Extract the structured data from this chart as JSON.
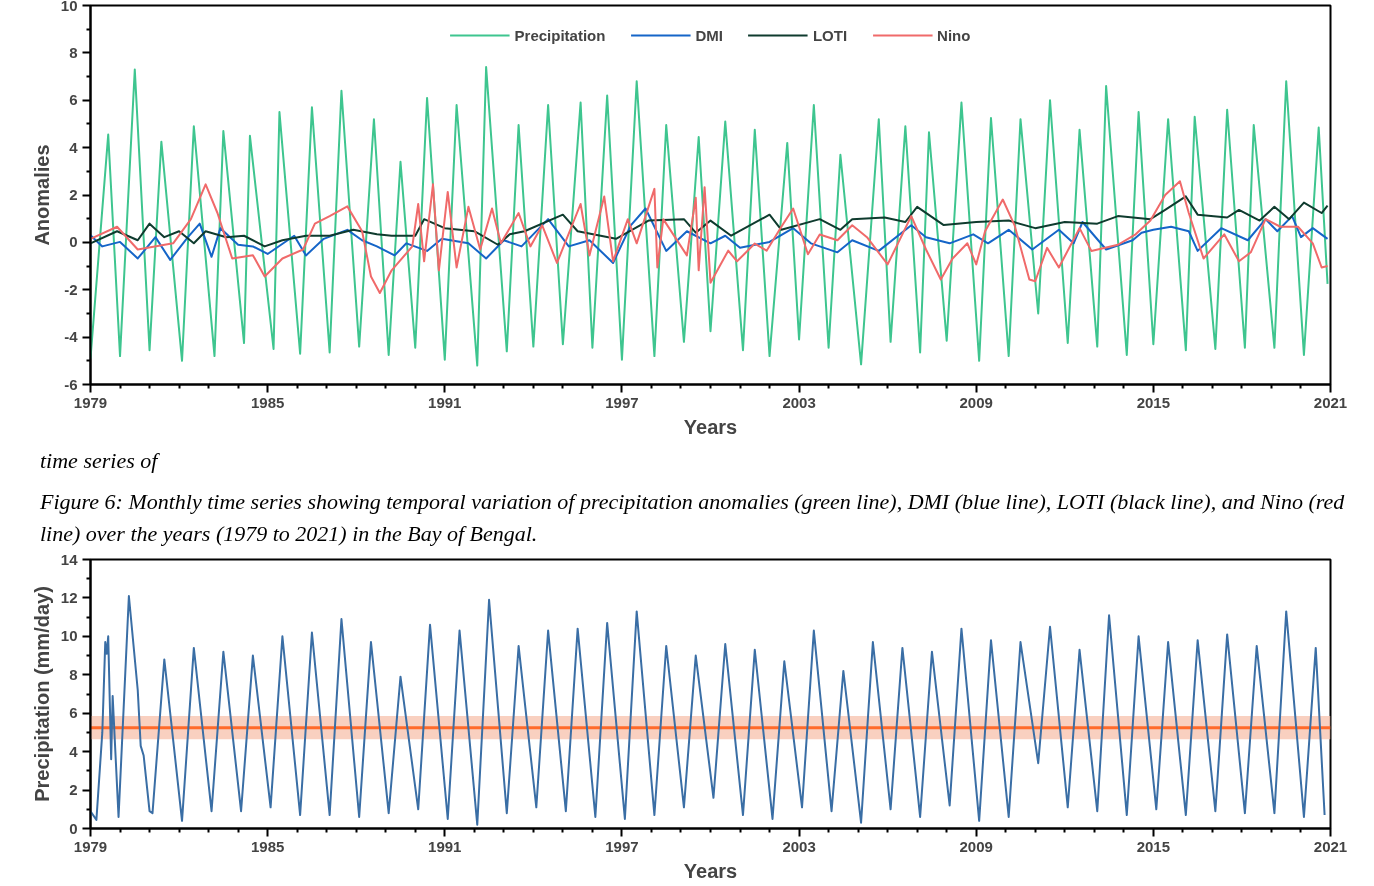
{
  "chart_data": [
    {
      "type": "line",
      "xlabel": "Years",
      "ylabel": "Anomalies",
      "xlim": [
        1979,
        2021
      ],
      "xticks": [
        1979,
        1985,
        1991,
        1997,
        2003,
        2009,
        2015,
        2021
      ],
      "ylim": [
        -6,
        10
      ],
      "yticks": [
        -6,
        -4,
        -2,
        0,
        2,
        4,
        6,
        8,
        10
      ],
      "grid": false,
      "legend": "top",
      "marker": "none",
      "line_style": "solid",
      "annotations": [
        "time series of",
        "Figure 6: Monthly time series showing temporal variation of precipitation anomalies (green line), DMI (blue line), LOTI (black line), and Nino (red line) over the years (1979 to 2021) in the Bay of Bengal."
      ],
      "series": [
        {
          "name": "Precipitation",
          "color": "#3ec58f",
          "x": [
            1979.0,
            1979.6,
            1980.0,
            1980.5,
            1981.0,
            1981.4,
            1982.1,
            1982.5,
            1983.2,
            1983.5,
            1984.2,
            1984.4,
            1985.2,
            1985.4,
            1986.1,
            1986.5,
            1987.1,
            1987.5,
            1988.1,
            1988.6,
            1989.1,
            1989.5,
            1990.0,
            1990.4,
            1991.0,
            1991.4,
            1992.1,
            1992.4,
            1993.1,
            1993.5,
            1994.0,
            1994.5,
            1995.0,
            1995.6,
            1996.0,
            1996.5,
            1997.0,
            1997.5,
            1998.1,
            1998.5,
            1999.1,
            1999.6,
            2000.0,
            2000.5,
            2001.1,
            2001.5,
            2002.0,
            2002.6,
            2003.0,
            2003.5,
            2004.0,
            2004.4,
            2005.1,
            2005.7,
            2006.1,
            2006.6,
            2007.1,
            2007.4,
            2008.0,
            2008.5,
            2009.1,
            2009.5,
            2010.1,
            2010.5,
            2011.1,
            2011.5,
            2012.1,
            2012.5,
            2013.1,
            2013.4,
            2014.1,
            2014.5,
            2015.0,
            2015.5,
            2016.1,
            2016.4,
            2017.1,
            2017.5,
            2018.1,
            2018.4,
            2019.1,
            2019.5,
            2020.1,
            2020.6,
            2020.9
          ],
          "values": [
            -4.9,
            4.55,
            -4.8,
            7.3,
            -4.55,
            4.25,
            -5.0,
            4.9,
            -4.8,
            4.7,
            -4.25,
            4.5,
            -4.5,
            5.5,
            -4.7,
            5.7,
            -4.65,
            6.4,
            -4.4,
            5.2,
            -4.75,
            3.4,
            -4.45,
            6.1,
            -4.95,
            5.8,
            -5.2,
            7.4,
            -4.6,
            4.95,
            -4.4,
            5.8,
            -4.3,
            5.9,
            -4.45,
            6.2,
            -4.95,
            6.8,
            -4.8,
            4.95,
            -4.2,
            4.45,
            -3.75,
            5.1,
            -4.55,
            4.75,
            -4.8,
            4.2,
            -4.1,
            5.8,
            -4.45,
            3.7,
            -5.15,
            5.2,
            -4.2,
            4.9,
            -4.65,
            4.65,
            -4.15,
            5.9,
            -5.0,
            5.25,
            -4.8,
            5.2,
            -3.0,
            6.0,
            -4.25,
            4.75,
            -4.4,
            6.6,
            -4.75,
            5.5,
            -4.3,
            5.2,
            -4.55,
            5.3,
            -4.5,
            5.6,
            -4.45,
            4.95,
            -4.45,
            6.8,
            -4.75,
            4.85,
            -1.75
          ]
        },
        {
          "name": "DMI",
          "color": "#1565c8",
          "x": [
            1979.0,
            1979.4,
            1980.0,
            1980.6,
            1981.2,
            1981.7,
            1982.3,
            1982.7,
            1983.1,
            1983.4,
            1984.0,
            1984.5,
            1985.0,
            1985.9,
            1986.3,
            1986.9,
            1987.7,
            1988.2,
            1988.7,
            1989.3,
            1989.7,
            1990.4,
            1990.9,
            1991.8,
            1992.4,
            1993.0,
            1993.6,
            1994.5,
            1995.2,
            1995.9,
            1996.7,
            1997.3,
            1997.8,
            1998.5,
            1999.2,
            2000.0,
            2000.5,
            2001.0,
            2002.0,
            2002.8,
            2003.4,
            2004.3,
            2004.8,
            2005.7,
            2006.8,
            2007.3,
            2008.1,
            2008.9,
            2009.4,
            2010.1,
            2010.9,
            2011.8,
            2012.3,
            2012.6,
            2013.4,
            2014.3,
            2014.6,
            2015.0,
            2015.6,
            2016.2,
            2016.5,
            2017.3,
            2018.2,
            2018.8,
            2019.2,
            2019.7,
            2020.0,
            2020.4,
            2020.9
          ],
          "values": [
            0.3,
            -0.17,
            0.02,
            -0.68,
            0.22,
            -0.74,
            0.22,
            0.79,
            -0.61,
            0.6,
            -0.1,
            -0.17,
            -0.49,
            0.28,
            -0.55,
            0.15,
            0.53,
            0.09,
            -0.17,
            -0.55,
            -0.04,
            -0.36,
            0.15,
            -0.04,
            -0.68,
            0.09,
            -0.17,
            0.98,
            -0.17,
            0.09,
            -0.87,
            0.72,
            1.43,
            -0.36,
            0.47,
            -0.04,
            0.28,
            -0.23,
            0.02,
            0.6,
            -0.04,
            -0.42,
            0.09,
            -0.36,
            0.72,
            0.22,
            -0.04,
            0.34,
            -0.04,
            0.53,
            -0.3,
            0.53,
            -0.04,
            0.86,
            -0.3,
            0.09,
            0.41,
            0.53,
            0.66,
            0.47,
            -0.36,
            0.6,
            0.09,
            0.98,
            0.47,
            1.11,
            0.22,
            0.6,
            0.15
          ]
        },
        {
          "name": "LOTI",
          "color": "#0f3b2e",
          "x": [
            1979.0,
            1979.9,
            1980.6,
            1981.0,
            1981.5,
            1982.0,
            1982.5,
            1982.9,
            1983.6,
            1984.2,
            1984.9,
            1985.5,
            1986.3,
            1987.1,
            1987.9,
            1988.7,
            1989.2,
            1990.0,
            1990.3,
            1991.0,
            1992.0,
            1992.8,
            1993.2,
            1993.7,
            1995.0,
            1995.5,
            1996.8,
            1997.9,
            1999.1,
            1999.5,
            2000.0,
            2000.7,
            2002.0,
            2002.4,
            2003.7,
            2004.4,
            2004.8,
            2005.9,
            2006.6,
            2007.0,
            2007.9,
            2009.0,
            2010.1,
            2011.0,
            2012.0,
            2013.1,
            2013.8,
            2014.9,
            2015.4,
            2016.1,
            2016.5,
            2017.5,
            2017.9,
            2018.6,
            2019.1,
            2019.6,
            2020.1,
            2020.7,
            2020.9
          ],
          "values": [
            -0.04,
            0.47,
            0.09,
            0.79,
            0.22,
            0.47,
            -0.04,
            0.47,
            0.22,
            0.28,
            -0.17,
            0.09,
            0.28,
            0.28,
            0.53,
            0.34,
            0.28,
            0.28,
            0.98,
            0.6,
            0.47,
            -0.1,
            0.34,
            0.47,
            1.17,
            0.47,
            0.15,
            0.92,
            0.98,
            0.41,
            0.92,
            0.28,
            1.17,
            0.53,
            0.98,
            0.53,
            0.98,
            1.05,
            0.86,
            1.5,
            0.73,
            0.86,
            0.92,
            0.6,
            0.86,
            0.79,
            1.11,
            0.98,
            1.37,
            1.94,
            1.17,
            1.05,
            1.37,
            0.92,
            1.5,
            0.98,
            1.68,
            1.24,
            1.55
          ]
        },
        {
          "name": "Nino",
          "color": "#f06a6a",
          "x": [
            1979.0,
            1979.9,
            1980.6,
            1981.8,
            1982.4,
            1982.9,
            1983.3,
            1983.8,
            1984.5,
            1984.9,
            1985.5,
            1986.2,
            1986.6,
            1987.1,
            1987.7,
            1988.2,
            1988.5,
            1988.8,
            1989.2,
            1989.9,
            1990.1,
            1990.3,
            1990.6,
            1990.8,
            1991.1,
            1991.4,
            1991.8,
            1992.2,
            1992.6,
            1992.9,
            1993.5,
            1993.9,
            1994.3,
            1994.8,
            1995.6,
            1995.9,
            1996.4,
            1996.7,
            1997.2,
            1997.5,
            1998.1,
            1998.2,
            1998.4,
            1999.2,
            1999.5,
            1999.6,
            1999.8,
            2000.0,
            2000.6,
            2000.9,
            2001.5,
            2001.9,
            2002.4,
            2002.8,
            2003.3,
            2003.7,
            2004.3,
            2004.8,
            2005.3,
            2006.0,
            2006.8,
            2007.3,
            2007.8,
            2008.2,
            2008.7,
            2009.0,
            2009.3,
            2009.9,
            2010.3,
            2010.8,
            2011.0,
            2011.4,
            2011.8,
            2012.5,
            2012.9,
            2013.8,
            2014.4,
            2014.9,
            2015.4,
            2015.9,
            2016.2,
            2016.7,
            2017.4,
            2017.9,
            2018.3,
            2018.8,
            2019.3,
            2019.9,
            2020.4,
            2020.7,
            2020.9
          ],
          "values": [
            0.15,
            0.66,
            -0.3,
            -0.04,
            0.98,
            2.45,
            1.24,
            -0.68,
            -0.54,
            -1.44,
            -0.68,
            -0.3,
            0.79,
            1.11,
            1.52,
            0.47,
            -1.44,
            -2.14,
            -1.18,
            -0.17,
            1.62,
            -0.8,
            2.45,
            -1.18,
            2.13,
            -1.06,
            1.5,
            -0.3,
            1.43,
            -0.04,
            1.24,
            -0.17,
            0.72,
            -0.87,
            1.62,
            -0.55,
            1.94,
            -0.8,
            0.98,
            -0.04,
            2.26,
            -1.06,
            0.98,
            -0.55,
            1.88,
            -1.18,
            2.33,
            -1.7,
            -0.35,
            -0.8,
            -0.05,
            -0.35,
            0.66,
            1.43,
            -0.5,
            0.33,
            0.09,
            0.72,
            0.22,
            -0.93,
            1.11,
            -0.3,
            -1.57,
            -0.68,
            -0.04,
            -0.93,
            0.47,
            1.81,
            0.72,
            -1.57,
            -1.64,
            -0.23,
            -1.06,
            0.6,
            -0.36,
            -0.1,
            0.34,
            0.92,
            2.0,
            2.58,
            1.24,
            -0.68,
            0.34,
            -0.8,
            -0.42,
            0.98,
            0.66,
            0.66,
            -0.04,
            -1.06,
            -1.0
          ]
        }
      ]
    },
    {
      "type": "line",
      "xlabel": "Years",
      "ylabel": "Precipitation (mm/day)",
      "xlim": [
        1979,
        2021
      ],
      "xticks": [
        1979,
        1985,
        1991,
        1997,
        2003,
        2009,
        2015,
        2021
      ],
      "ylim": [
        0,
        14
      ],
      "yticks": [
        0,
        2,
        4,
        6,
        8,
        10,
        12,
        14
      ],
      "grid": false,
      "marker": "none",
      "line_style": "solid",
      "ref_lines": [
        {
          "axis": "y",
          "value": 5.25,
          "color": "#ff6a2a"
        }
      ],
      "bands": [
        {
          "axis": "y",
          "from": 4.65,
          "to": 5.85,
          "color": "#f8c4b0"
        }
      ],
      "series": [
        {
          "color": "#3a6ea5",
          "x": [
            1979.0,
            1979.2,
            1979.4,
            1979.5,
            1979.55,
            1979.6,
            1979.7,
            1979.75,
            1979.95,
            1980.3,
            1980.6,
            1980.7,
            1980.8,
            1981.0,
            1981.1,
            1981.5,
            1982.1,
            1982.5,
            1983.1,
            1983.5,
            1984.1,
            1984.5,
            1985.1,
            1985.5,
            1986.1,
            1986.5,
            1987.1,
            1987.5,
            1988.1,
            1988.5,
            1989.1,
            1989.5,
            1990.1,
            1990.5,
            1991.1,
            1991.5,
            1992.1,
            1992.5,
            1993.1,
            1993.5,
            1994.1,
            1994.5,
            1995.1,
            1995.5,
            1996.1,
            1996.5,
            1997.1,
            1997.5,
            1998.1,
            1998.5,
            1999.1,
            1999.5,
            2000.1,
            2000.5,
            2001.1,
            2001.5,
            2002.1,
            2002.5,
            2003.1,
            2003.5,
            2004.1,
            2004.5,
            2005.1,
            2005.5,
            2006.1,
            2006.5,
            2007.1,
            2007.5,
            2008.1,
            2008.5,
            2009.1,
            2009.5,
            2010.1,
            2010.5,
            2011.1,
            2011.5,
            2012.1,
            2012.5,
            2013.1,
            2013.5,
            2014.1,
            2014.5,
            2015.1,
            2015.5,
            2016.1,
            2016.5,
            2017.1,
            2017.5,
            2018.1,
            2018.5,
            2019.1,
            2019.5,
            2020.1,
            2020.5,
            2020.8
          ],
          "values": [
            0.9,
            0.45,
            5.0,
            9.7,
            9.1,
            10.0,
            3.6,
            6.9,
            0.6,
            12.1,
            7.2,
            4.3,
            3.8,
            0.9,
            0.8,
            8.8,
            0.4,
            9.4,
            0.9,
            9.2,
            0.9,
            9.0,
            1.1,
            10.0,
            0.7,
            10.2,
            0.7,
            10.9,
            0.6,
            9.7,
            0.8,
            7.9,
            1.0,
            10.6,
            0.5,
            10.3,
            0.2,
            11.9,
            0.8,
            9.5,
            1.1,
            10.3,
            0.9,
            10.4,
            0.6,
            10.7,
            0.5,
            11.3,
            0.7,
            9.5,
            1.1,
            9.0,
            1.6,
            9.6,
            0.7,
            9.3,
            0.5,
            8.7,
            1.1,
            10.3,
            0.9,
            8.2,
            0.3,
            9.7,
            1.0,
            9.4,
            0.6,
            9.2,
            1.2,
            10.4,
            0.4,
            9.8,
            0.6,
            9.7,
            3.4,
            10.5,
            1.1,
            9.3,
            0.9,
            11.1,
            0.7,
            10.0,
            1.0,
            9.7,
            0.7,
            9.8,
            0.9,
            10.1,
            0.8,
            9.5,
            0.8,
            11.3,
            0.6,
            9.4,
            0.7
          ]
        }
      ]
    }
  ]
}
